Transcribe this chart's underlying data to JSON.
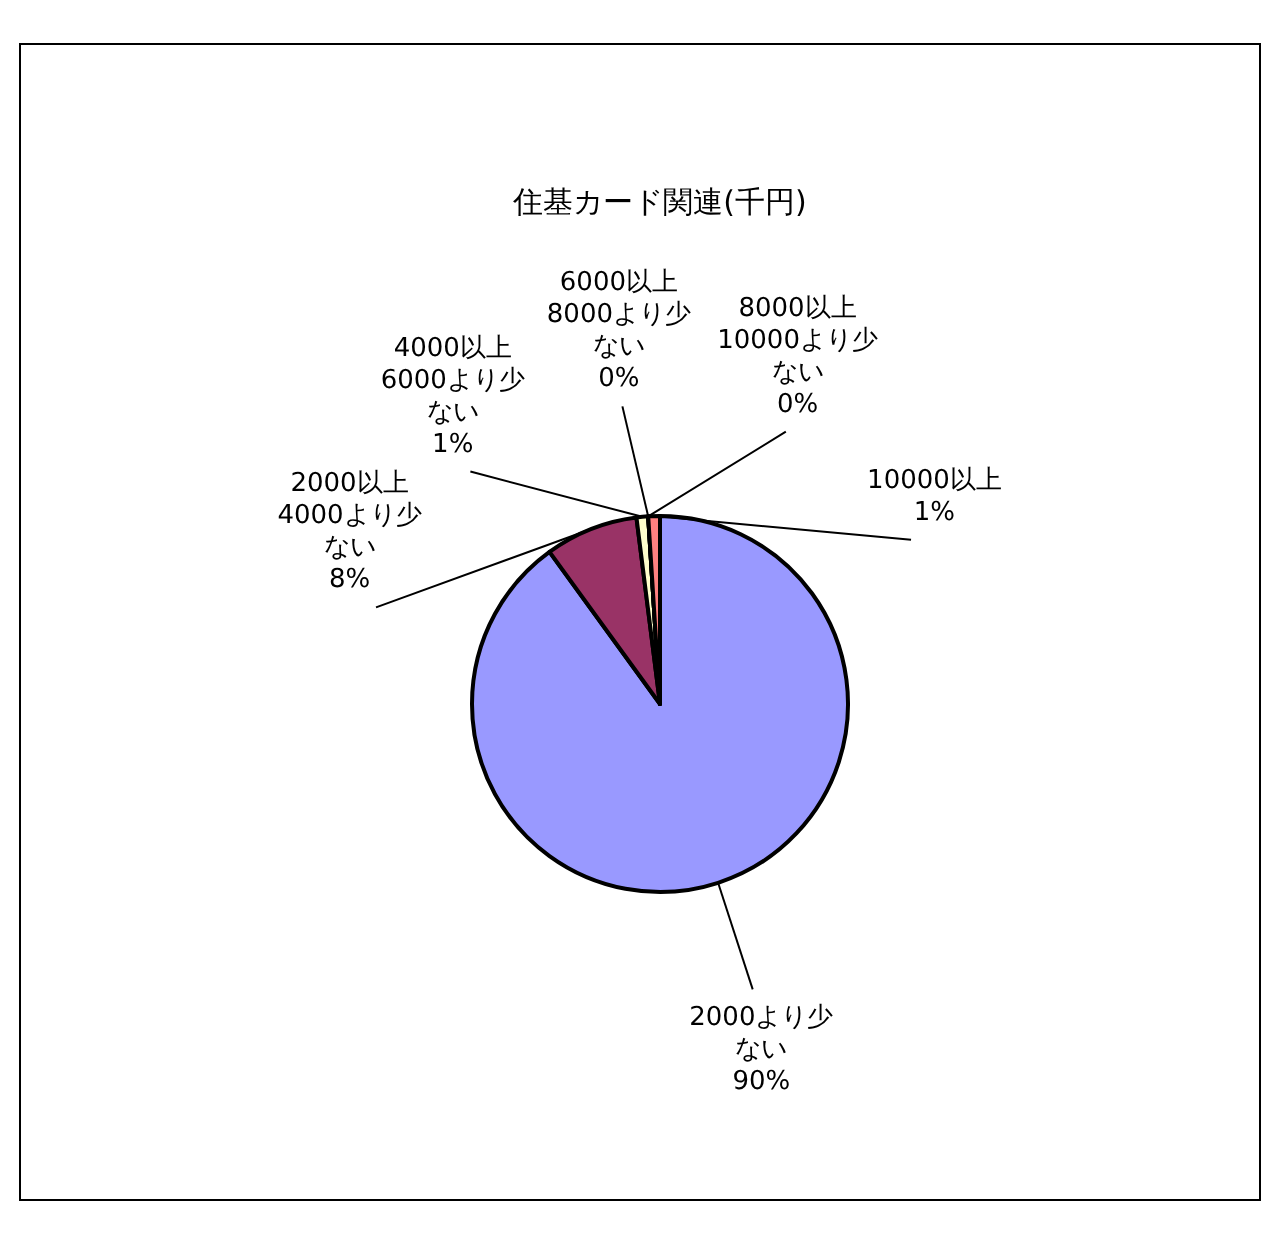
{
  "chart_data": {
    "type": "pie",
    "title": "住基カード関連(千円)",
    "categories": [
      "2000より少ない",
      "2000以上4000より少ない",
      "4000以上6000より少ない",
      "6000以上8000より少ない",
      "8000以上10000より少ない",
      "10000以上"
    ],
    "values": [
      90,
      8,
      1,
      0,
      0,
      1
    ],
    "value_labels": [
      "90%",
      "8%",
      "1%",
      "0%",
      "0%",
      "1%"
    ],
    "colors": [
      "#9999ff",
      "#993366",
      "#ffffcc",
      "#ccffff",
      "#660066",
      "#ff8080"
    ]
  }
}
